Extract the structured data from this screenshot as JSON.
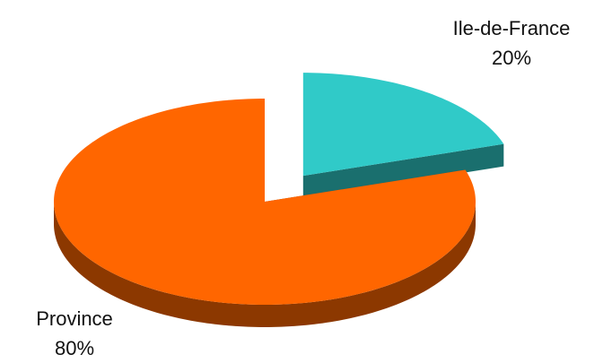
{
  "chart_data": {
    "type": "pie",
    "categories": [
      "Ile-de-France",
      "Province"
    ],
    "values": [
      20,
      80
    ],
    "value_labels": [
      "20%",
      "80%"
    ],
    "colors": [
      "#30cac8",
      "#ff6600"
    ]
  }
}
